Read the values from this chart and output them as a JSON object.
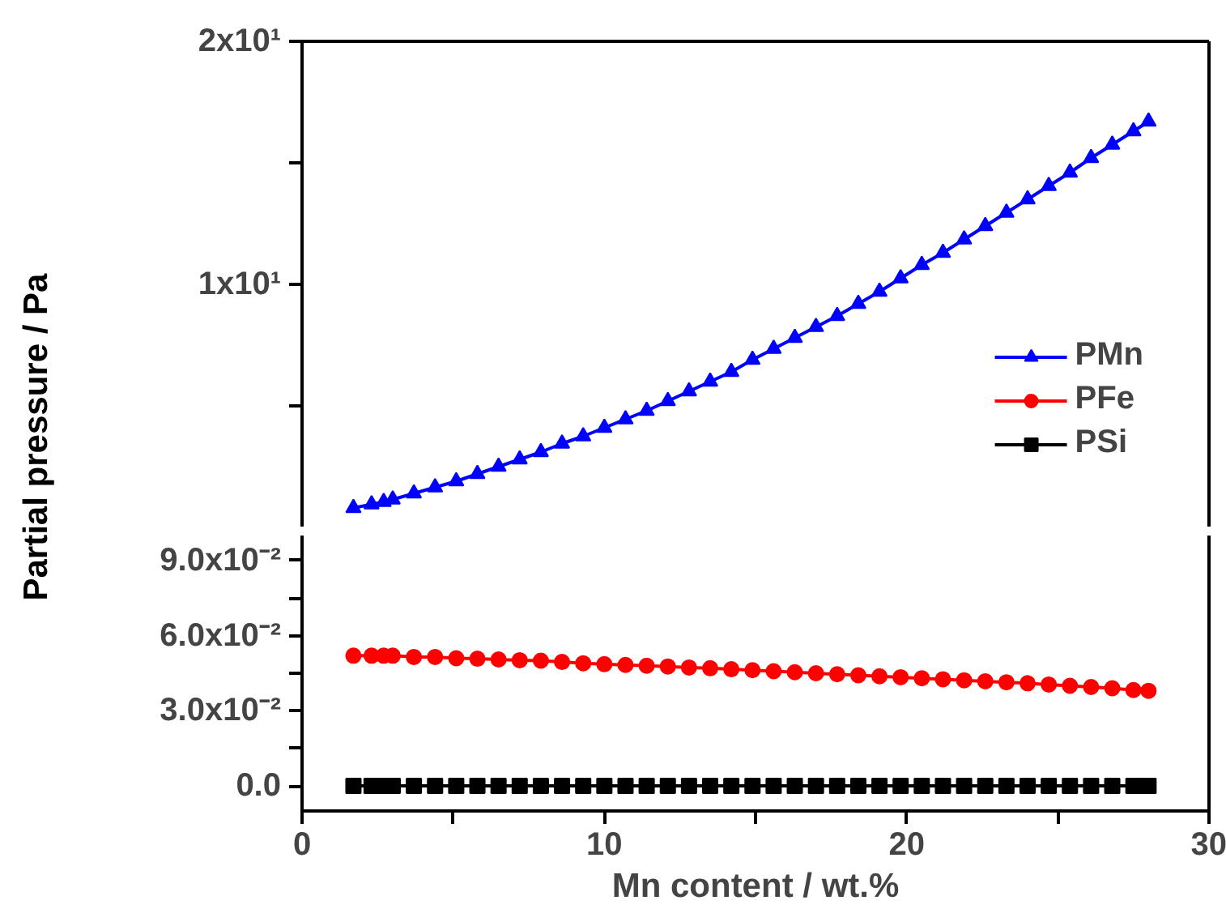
{
  "chart_data": [
    {
      "type": "line",
      "ylabel": "Partial pressure / Pa",
      "xlim": [
        0,
        30
      ],
      "ylim": [
        0,
        20
      ],
      "yticks": [
        {
          "value": 5,
          "label": null
        },
        {
          "value": 10,
          "label": "1x10¹"
        },
        {
          "value": 15,
          "label": null
        },
        {
          "value": 20,
          "label": "2x10¹"
        }
      ],
      "tick_labels": "y",
      "legend": "bottom right",
      "line_style": "solid",
      "x": [
        1.7,
        2.3,
        2.7,
        3.0,
        3.7,
        4.4,
        5.1,
        5.8,
        6.5,
        7.2,
        7.9,
        8.6,
        9.3,
        10.0,
        10.7,
        11.4,
        12.1,
        12.8,
        13.5,
        14.2,
        14.9,
        15.6,
        16.3,
        17.0,
        17.7,
        18.4,
        19.1,
        19.8,
        20.5,
        21.2,
        21.9,
        22.6,
        23.3,
        24.0,
        24.7,
        25.4,
        26.1,
        26.8,
        27.5,
        28.0
      ],
      "series": [
        {
          "name": "PMn",
          "color": "#0000ff",
          "marker": "triangle",
          "values": [
            0.8,
            0.95,
            1.05,
            1.15,
            1.4,
            1.65,
            1.9,
            2.2,
            2.5,
            2.8,
            3.1,
            3.45,
            3.75,
            4.1,
            4.45,
            4.8,
            5.2,
            5.6,
            6.0,
            6.4,
            6.9,
            7.35,
            7.8,
            8.25,
            8.7,
            9.2,
            9.7,
            10.25,
            10.8,
            11.3,
            11.85,
            12.4,
            12.95,
            13.5,
            14.05,
            14.6,
            15.2,
            15.75,
            16.3,
            16.7
          ]
        }
      ]
    },
    {
      "type": "line",
      "xlabel": "Mn content / wt.%",
      "xlim": [
        0,
        30
      ],
      "xticks": [
        0,
        {
          "value": 5,
          "label": null
        },
        10,
        {
          "value": 15,
          "label": null
        },
        20,
        {
          "value": 25,
          "label": null
        },
        30
      ],
      "ylim": [
        -0.01,
        0.1
      ],
      "legend": "top",
      "yticks": [
        {
          "value": 0,
          "label": "0.0"
        },
        {
          "value": 0.015,
          "label": null
        },
        {
          "value": 0.03,
          "label": "3.0x10⁻²"
        },
        {
          "value": 0.045,
          "label": null
        },
        {
          "value": 0.06,
          "label": "6.0x10⁻²"
        },
        {
          "value": 0.075,
          "label": null
        },
        {
          "value": 0.09,
          "label": "9.0x10⁻²"
        }
      ],
      "line_style": "solid",
      "x": [
        1.7,
        2.3,
        2.7,
        3.0,
        3.7,
        4.4,
        5.1,
        5.8,
        6.5,
        7.2,
        7.9,
        8.6,
        9.3,
        10.0,
        10.7,
        11.4,
        12.1,
        12.8,
        13.5,
        14.2,
        14.9,
        15.6,
        16.3,
        17.0,
        17.7,
        18.4,
        19.1,
        19.8,
        20.5,
        21.2,
        21.9,
        22.6,
        23.3,
        24.0,
        24.7,
        25.4,
        26.1,
        26.8,
        27.5,
        28.0
      ],
      "series": [
        {
          "name": "PFe",
          "color": "#ff0000",
          "marker": "circle",
          "values": [
            0.052,
            0.052,
            0.052,
            0.052,
            0.0515,
            0.0515,
            0.051,
            0.0508,
            0.0505,
            0.0502,
            0.05,
            0.0495,
            0.049,
            0.0486,
            0.0483,
            0.048,
            0.0477,
            0.0473,
            0.047,
            0.0466,
            0.0462,
            0.0458,
            0.0454,
            0.045,
            0.0446,
            0.0442,
            0.0438,
            0.0434,
            0.043,
            0.0426,
            0.0422,
            0.0418,
            0.0414,
            0.041,
            0.0405,
            0.04,
            0.0395,
            0.039,
            0.0383,
            0.038
          ]
        },
        {
          "name": "PSi",
          "color": "#000000",
          "marker": "square",
          "values": [
            0,
            0,
            0,
            0,
            0,
            0,
            0,
            0,
            0,
            0,
            0,
            0,
            0,
            0,
            0,
            0,
            0,
            0,
            0,
            0,
            0,
            0,
            0,
            0,
            0,
            0,
            0,
            0,
            0,
            0,
            0,
            0,
            0,
            0,
            0,
            0,
            0,
            0,
            0,
            0
          ]
        }
      ]
    }
  ]
}
